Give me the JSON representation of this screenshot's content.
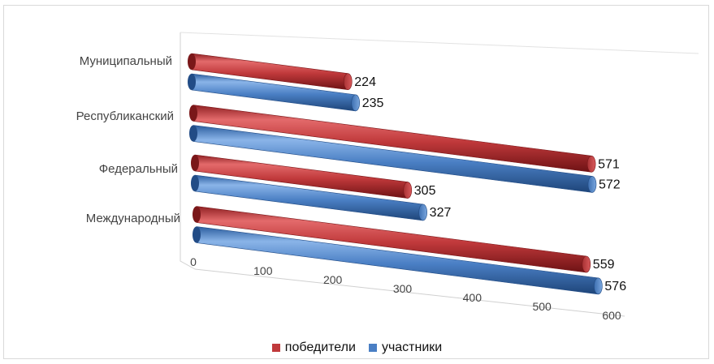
{
  "chart_data": {
    "type": "bar",
    "orientation": "horizontal",
    "style": "3d-cylinder",
    "title": "",
    "categories": [
      "Муниципальный",
      "Республиканский",
      "Федеральный",
      "Международный"
    ],
    "series": [
      {
        "name": "победители",
        "color": "#c0393b",
        "values": [
          224,
          571,
          305,
          559
        ]
      },
      {
        "name": "участники",
        "color": "#4a7fc4",
        "values": [
          235,
          572,
          327,
          576
        ]
      }
    ],
    "xlim": [
      0,
      600
    ],
    "ticks": [
      "0",
      "100",
      "200",
      "300",
      "400",
      "500",
      "600"
    ],
    "legend_position": "bottom",
    "grid": false
  },
  "legend": {
    "items": [
      {
        "label": "победители",
        "color": "#c0393b"
      },
      {
        "label": "участники",
        "color": "#4a7fc4"
      }
    ]
  }
}
